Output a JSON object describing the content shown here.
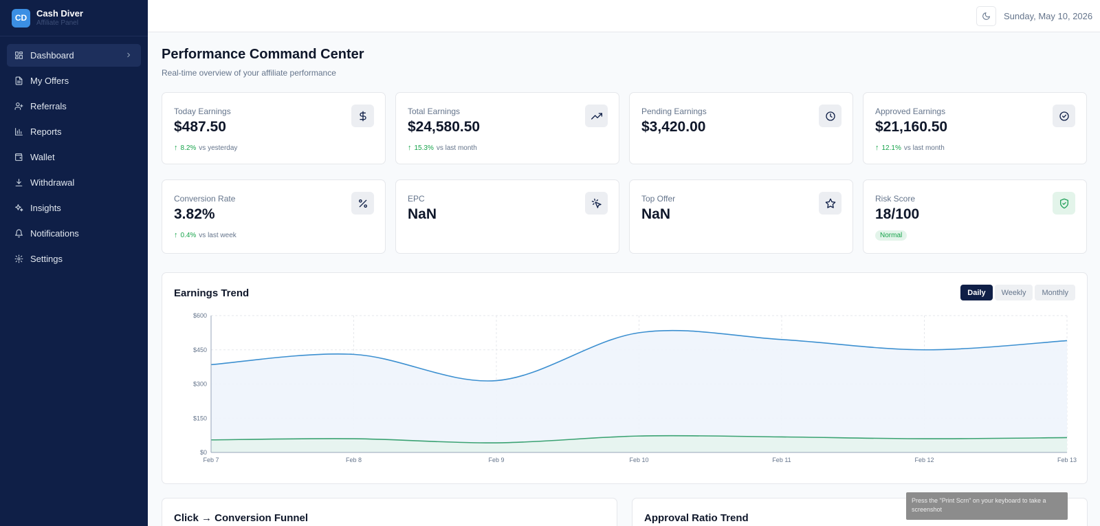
{
  "brand": {
    "logo": "CD",
    "name": "Cash Diver",
    "subtitle": "Affiliate Panel"
  },
  "sidebar": {
    "items": [
      {
        "label": "Dashboard",
        "icon": "dashboard-icon",
        "active": true
      },
      {
        "label": "My Offers",
        "icon": "document-icon"
      },
      {
        "label": "Referrals",
        "icon": "user-plus-icon"
      },
      {
        "label": "Reports",
        "icon": "bar-chart-icon"
      },
      {
        "label": "Wallet",
        "icon": "wallet-icon"
      },
      {
        "label": "Withdrawal",
        "icon": "download-icon"
      },
      {
        "label": "Insights",
        "icon": "sparkles-icon"
      },
      {
        "label": "Notifications",
        "icon": "bell-icon"
      },
      {
        "label": "Settings",
        "icon": "gear-icon"
      }
    ]
  },
  "topbar": {
    "date": "Sunday, May 10, 2026",
    "theme_icon": "moon-icon"
  },
  "page": {
    "title": "Performance Command Center",
    "subtitle": "Real-time overview of your affiliate performance"
  },
  "stats": [
    {
      "label": "Today Earnings",
      "value": "$487.50",
      "icon": "dollar-icon",
      "trend_pct": "8.2%",
      "trend_text": "vs yesterday"
    },
    {
      "label": "Total Earnings",
      "value": "$24,580.50",
      "icon": "trending-up-icon",
      "trend_pct": "15.3%",
      "trend_text": "vs last month"
    },
    {
      "label": "Pending Earnings",
      "value": "$3,420.00",
      "icon": "clock-icon"
    },
    {
      "label": "Approved Earnings",
      "value": "$21,160.50",
      "icon": "check-circle-icon",
      "trend_pct": "12.1%",
      "trend_text": "vs last month"
    },
    {
      "label": "Conversion Rate",
      "value": "3.82%",
      "icon": "percent-icon",
      "trend_pct": "0.4%",
      "trend_text": "vs last week"
    },
    {
      "label": "EPC",
      "value": "NaN",
      "icon": "cursor-click-icon"
    },
    {
      "label": "Top Offer",
      "value": "NaN",
      "icon": "star-icon"
    },
    {
      "label": "Risk Score",
      "value": "18/100",
      "icon": "shield-check-icon",
      "badge": "Normal"
    }
  ],
  "chart_card": {
    "title": "Earnings Trend",
    "tabs": [
      {
        "label": "Daily",
        "active": true
      },
      {
        "label": "Weekly"
      },
      {
        "label": "Monthly"
      }
    ]
  },
  "chart_data": {
    "type": "area",
    "title": "Earnings Trend",
    "x": [
      "Feb 7",
      "Feb 8",
      "Feb 9",
      "Feb 10",
      "Feb 11",
      "Feb 12",
      "Feb 13"
    ],
    "y_ticks": [
      "$0",
      "$150",
      "$300",
      "$450",
      "$600"
    ],
    "ylim": [
      0,
      600
    ],
    "grid": true,
    "series": [
      {
        "values": [
          385,
          430,
          315,
          525,
          495,
          450,
          490
        ],
        "color": "#3b8fd0",
        "fill": "#eef4fc"
      },
      {
        "values": [
          55,
          60,
          42,
          72,
          68,
          60,
          65
        ],
        "color": "#3aa272",
        "fill": "#e6f4ee"
      }
    ]
  },
  "bottom_cards": [
    {
      "title": "Click → Conversion Funnel"
    },
    {
      "title": "Approval Ratio Trend"
    }
  ],
  "toast": {
    "text": "Press the \"Print Scrn\" on your keyboard to take a screenshot"
  }
}
